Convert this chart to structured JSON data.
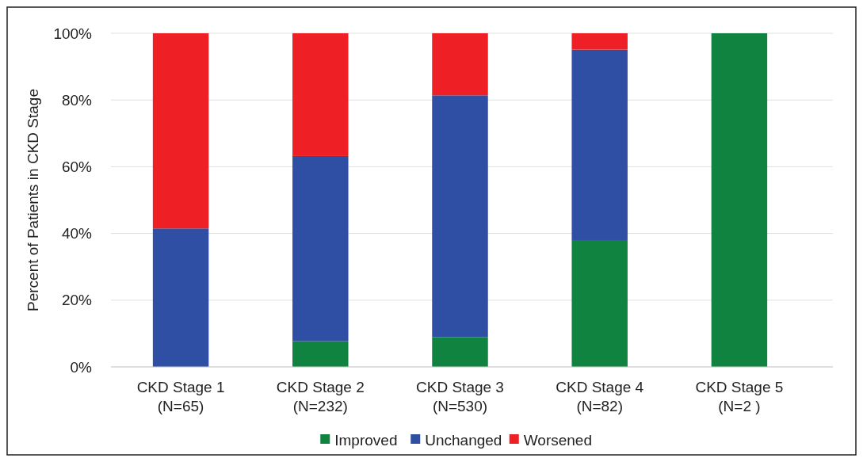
{
  "chart_data": {
    "type": "bar",
    "stacked": true,
    "ylabel": "Percent of Patients in CKD Stage",
    "categories": [
      "CKD Stage 1\n(N=65)",
      "CKD Stage 2\n(N=232)",
      "CKD Stage 3\n(N=530)",
      "CKD Stage 4\n(N=82)",
      "CKD Stage 5\n(N=2 )"
    ],
    "series": [
      {
        "name": "Improved",
        "color": "#108341",
        "values": [
          0,
          7.7,
          8.9,
          38.0,
          100
        ]
      },
      {
        "name": "Unchanged",
        "color": "#2e4fa3",
        "values": [
          41.5,
          55.5,
          72.5,
          57.1,
          0
        ]
      },
      {
        "name": "Worsened",
        "color": "#ee2025",
        "values": [
          58.5,
          36.8,
          18.6,
          4.9,
          0
        ]
      }
    ],
    "ylim": [
      0,
      100
    ],
    "yticks": [
      {
        "value": 0,
        "label": "0%"
      },
      {
        "value": 20,
        "label": "20%"
      },
      {
        "value": 40,
        "label": "40%"
      },
      {
        "value": 60,
        "label": "60%"
      },
      {
        "value": 80,
        "label": "80%"
      },
      {
        "value": 100,
        "label": "100%"
      }
    ],
    "grid": "y",
    "legend": "bottom"
  }
}
